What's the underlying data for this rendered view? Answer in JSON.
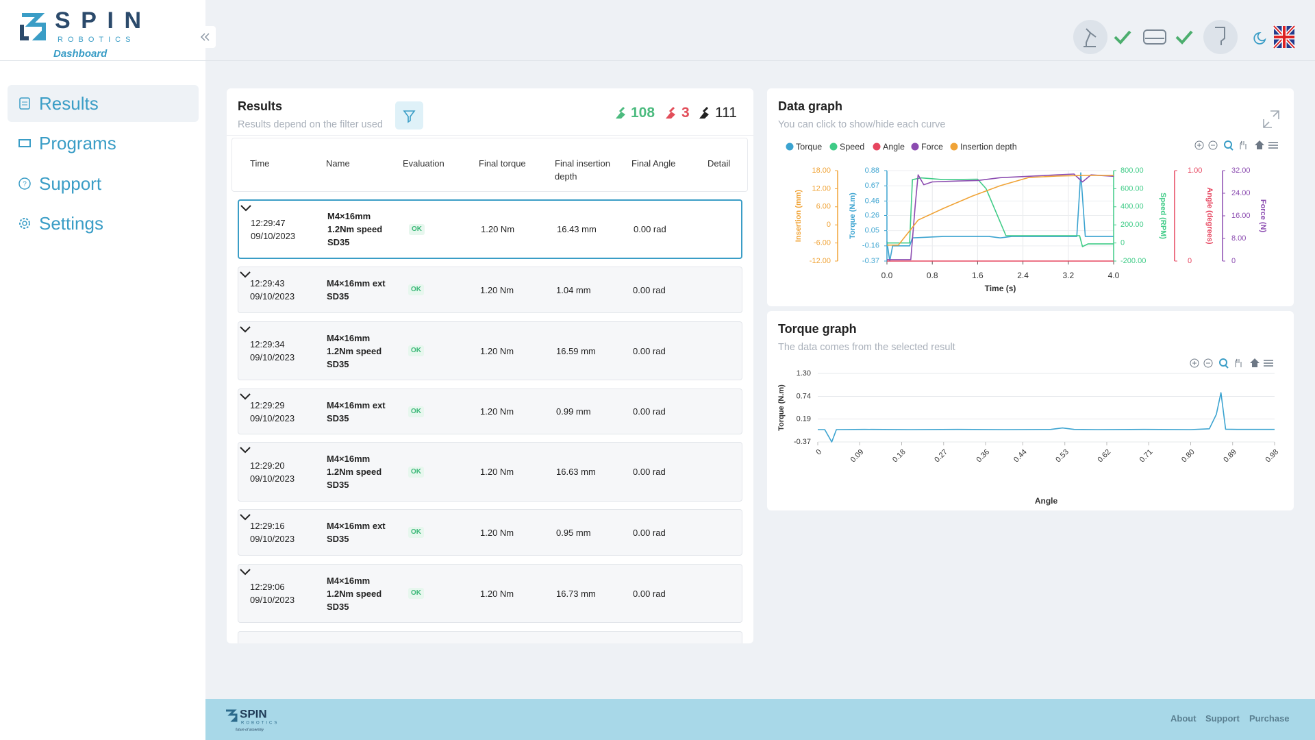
{
  "sidebar": {
    "brand": "SPIN",
    "brand_sub": "ROBOTICS",
    "subtitle": "Dashboard",
    "nav": [
      "Results",
      "Programs",
      "Support",
      "Settings"
    ]
  },
  "results": {
    "title": "Results",
    "subtitle": "Results depend on the filter used",
    "counts": {
      "ok": 108,
      "nok": 3,
      "total": 111
    },
    "columns": [
      "Time",
      "Name",
      "Evaluation",
      "Final torque",
      "Final insertion depth",
      "Final Angle",
      "Detail"
    ],
    "rows": [
      [
        "12:29:47",
        "09/10/2023",
        "M4×16mm 1.2Nm speed SD35",
        "OK",
        "1.20 Nm",
        "16.43 mm",
        "0.00 rad"
      ],
      [
        "12:29:43",
        "09/10/2023",
        "M4×16mm ext SD35",
        "OK",
        "1.20 Nm",
        "1.04 mm",
        "0.00 rad"
      ],
      [
        "12:29:34",
        "09/10/2023",
        "M4×16mm 1.2Nm speed SD35",
        "OK",
        "1.20 Nm",
        "16.59 mm",
        "0.00 rad"
      ],
      [
        "12:29:29",
        "09/10/2023",
        "M4×16mm ext SD35",
        "OK",
        "1.20 Nm",
        "0.99 mm",
        "0.00 rad"
      ],
      [
        "12:29:20",
        "09/10/2023",
        "M4×16mm 1.2Nm speed SD35",
        "OK",
        "1.20 Nm",
        "16.63 mm",
        "0.00 rad"
      ],
      [
        "12:29:16",
        "09/10/2023",
        "M4×16mm ext SD35",
        "OK",
        "1.20 Nm",
        "0.95 mm",
        "0.00 rad"
      ],
      [
        "12:29:06",
        "09/10/2023",
        "M4×16mm 1.2Nm speed SD35",
        "OK",
        "1.20 Nm",
        "16.73 mm",
        "0.00 rad"
      ]
    ]
  },
  "data_graph": {
    "type": "line",
    "title": "Data graph",
    "subtitle": "You can click to show/hide each curve",
    "xlabel": "Time (s)",
    "xlim": [
      0,
      4
    ],
    "xticks": [
      {
        "value": 0,
        "label": "0.0"
      },
      0.8,
      1.6,
      2.4,
      3.2,
      {
        "value": 4,
        "label": "4.0"
      }
    ],
    "grid": true,
    "series": [
      {
        "name": "Torque",
        "color": "#3ba3d0",
        "axis_label": "Torque (N.m)",
        "ylim": [
          -0.37,
          0.88
        ],
        "yticks": [
          0.88,
          0.67,
          0.46,
          0.26,
          0.05,
          -0.16,
          -0.37
        ],
        "x": [
          0,
          0.05,
          0.1,
          0.4,
          0.45,
          1.0,
          1.8,
          2.0,
          2.2,
          3.35,
          3.42,
          3.5,
          4.0
        ],
        "values": [
          -0.1,
          -0.37,
          -0.16,
          -0.16,
          -0.05,
          -0.03,
          -0.03,
          -0.05,
          -0.03,
          -0.03,
          0.85,
          -0.03,
          -0.03
        ]
      },
      {
        "name": "Speed",
        "color": "#3ecb86",
        "axis_label": "Speed (RPM)",
        "ylim": [
          -200,
          800
        ],
        "yticks": [
          {
            "value": 800,
            "label": "800.00"
          },
          {
            "value": 600,
            "label": "600.00"
          },
          {
            "value": 400,
            "label": "400.00"
          },
          {
            "value": 200,
            "label": "200.00"
          },
          0,
          {
            "value": -200,
            "label": "-200.00"
          }
        ],
        "x": [
          0,
          0.4,
          0.45,
          0.6,
          1.0,
          1.6,
          1.75,
          2.1,
          3.4,
          3.45,
          3.55,
          4.0
        ],
        "values": [
          0,
          0,
          700,
          720,
          700,
          705,
          600,
          80,
          80,
          -40,
          -10,
          -10
        ]
      },
      {
        "name": "Angle",
        "color": "#e6455f",
        "axis_label": "Angle (degrees)",
        "ylim": [
          0,
          1
        ],
        "yticks": [
          {
            "value": 1,
            "label": "1.00"
          },
          0
        ],
        "x": [
          0,
          4.0
        ],
        "values": [
          0,
          0
        ]
      },
      {
        "name": "Force",
        "color": "#8b4bb0",
        "axis_label": "Force (N)",
        "ylim": [
          0,
          32
        ],
        "yticks": [
          {
            "value": 32,
            "label": "32.00"
          },
          {
            "value": 24,
            "label": "24.00"
          },
          {
            "value": 16,
            "label": "16.00"
          },
          {
            "value": 8,
            "label": "8.00"
          },
          0
        ],
        "x": [
          0,
          0.42,
          0.5,
          0.55,
          0.65,
          0.8,
          1.2,
          1.6,
          2.0,
          2.5,
          3.0,
          3.3,
          3.45,
          3.6,
          4.0
        ],
        "values": [
          0.5,
          0.5,
          20,
          30.5,
          27,
          28,
          28.3,
          28.5,
          29.5,
          30,
          30.5,
          30.8,
          28,
          30.5,
          30
        ]
      },
      {
        "name": "Insertion depth",
        "color": "#f0a336",
        "axis_label": "Insertion (mm)",
        "ylim": [
          -12,
          18
        ],
        "yticks": [
          {
            "value": 18,
            "label": "18.00"
          },
          {
            "value": 12,
            "label": "12.00"
          },
          {
            "value": 6,
            "label": "6.00"
          },
          0,
          {
            "value": -6,
            "label": "-6.00"
          },
          {
            "value": -12,
            "label": "-12.00"
          }
        ],
        "x": [
          0,
          0.2,
          0.4,
          0.55,
          1.0,
          1.5,
          2.0,
          2.5,
          3.0,
          3.5,
          4.0
        ],
        "values": [
          -6.7,
          -6.7,
          -2,
          1.6,
          5.5,
          9.5,
          13,
          15.7,
          16.2,
          16.4,
          16.4
        ]
      }
    ]
  },
  "torque_graph": {
    "type": "line",
    "title": "Torque graph",
    "subtitle": "The data comes from the selected result",
    "xlabel": "Angle",
    "ylabel": "Torque (N.m)",
    "xlim": [
      0,
      0.98
    ],
    "xticks": [
      0,
      0.09,
      0.18,
      0.27,
      0.36,
      0.44,
      0.53,
      0.62,
      0.71,
      {
        "value": 0.8,
        "label": "0.80"
      },
      0.89,
      0.98
    ],
    "ylim": [
      -0.37,
      1.3
    ],
    "yticks": [
      {
        "value": 1.3,
        "label": "1.30"
      },
      0.74,
      0.19,
      -0.37
    ],
    "grid": true,
    "color": "#3ba3d0",
    "x": [
      0,
      0.015,
      0.03,
      0.04,
      0.1,
      0.2,
      0.3,
      0.4,
      0.5,
      0.525,
      0.55,
      0.6,
      0.7,
      0.8,
      0.84,
      0.855,
      0.865,
      0.875,
      0.9,
      0.98
    ],
    "values": [
      -0.07,
      -0.07,
      -0.37,
      -0.07,
      -0.065,
      -0.07,
      -0.065,
      -0.07,
      -0.065,
      -0.03,
      -0.065,
      -0.07,
      -0.065,
      -0.07,
      -0.05,
      0.3,
      0.83,
      -0.06,
      -0.065,
      -0.065
    ]
  },
  "footer": {
    "brand": "SPIN",
    "brand_sub": "ROBOTICS",
    "tagline": "future of assembly",
    "links": [
      "About",
      "Support",
      "Purchase"
    ]
  }
}
